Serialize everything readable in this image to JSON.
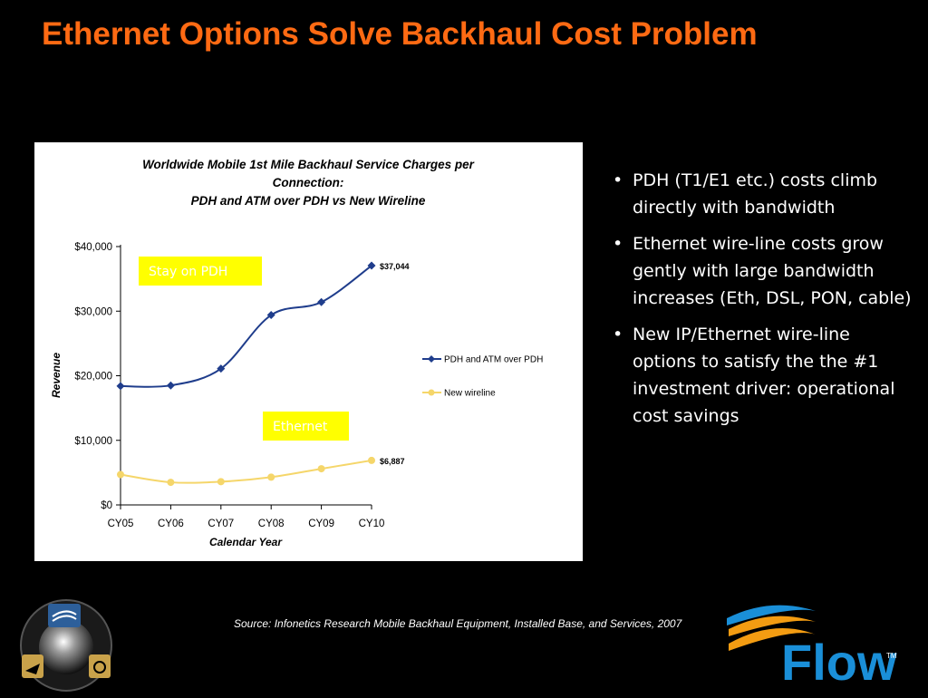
{
  "slide": {
    "title": "Ethernet Options Solve Backhaul Cost Problem",
    "bullets": [
      "PDH (T1/E1 etc.) costs climb directly with bandwidth",
      "Ethernet wire-line costs grow gently with large bandwidth increases (Eth, DSL, PON, cable)",
      "New IP/Ethernet wire-line options to satisfy the the #1 investment driver: operational cost savings"
    ],
    "source": "Source: Infonetics Research Mobile Backhaul Equipment, Installed Base, and Services, 2007",
    "flow_logo": "Flow",
    "flow_tm": "TM",
    "colors": {
      "title": "#ff6a13",
      "pdh": "#1f3d8c",
      "wireline": "#f5d66a",
      "callout": "#ffff00",
      "flow_blue": "#1a8fd8",
      "flow_orange": "#f39c12"
    }
  },
  "chart_data": {
    "type": "line",
    "title_lines": [
      "Worldwide Mobile 1st Mile Backhaul Service Charges per",
      "Connection:",
      "PDH and ATM over PDH vs New Wireline"
    ],
    "xlabel": "Calendar Year",
    "ylabel": "Revenue",
    "categories": [
      "CY05",
      "CY06",
      "CY07",
      "CY08",
      "CY09",
      "CY10"
    ],
    "y_ticks": [
      "$0",
      "$10,000",
      "$20,000",
      "$30,000",
      "$40,000"
    ],
    "ylim": [
      0,
      40000
    ],
    "series": [
      {
        "name": "PDH and ATM over PDH",
        "values": [
          18400,
          18500,
          21100,
          29400,
          31400,
          37044
        ],
        "end_label": "$37,044",
        "color": "#1f3d8c",
        "marker": "diamond"
      },
      {
        "name": "New wireline",
        "values": [
          4700,
          3500,
          3600,
          4300,
          5600,
          6887
        ],
        "end_label": "$6,887",
        "color": "#f5d66a",
        "marker": "circle"
      }
    ],
    "annotations": [
      "Stay on PDH",
      "Ethernet"
    ],
    "legend_position": "right",
    "grid": false
  }
}
